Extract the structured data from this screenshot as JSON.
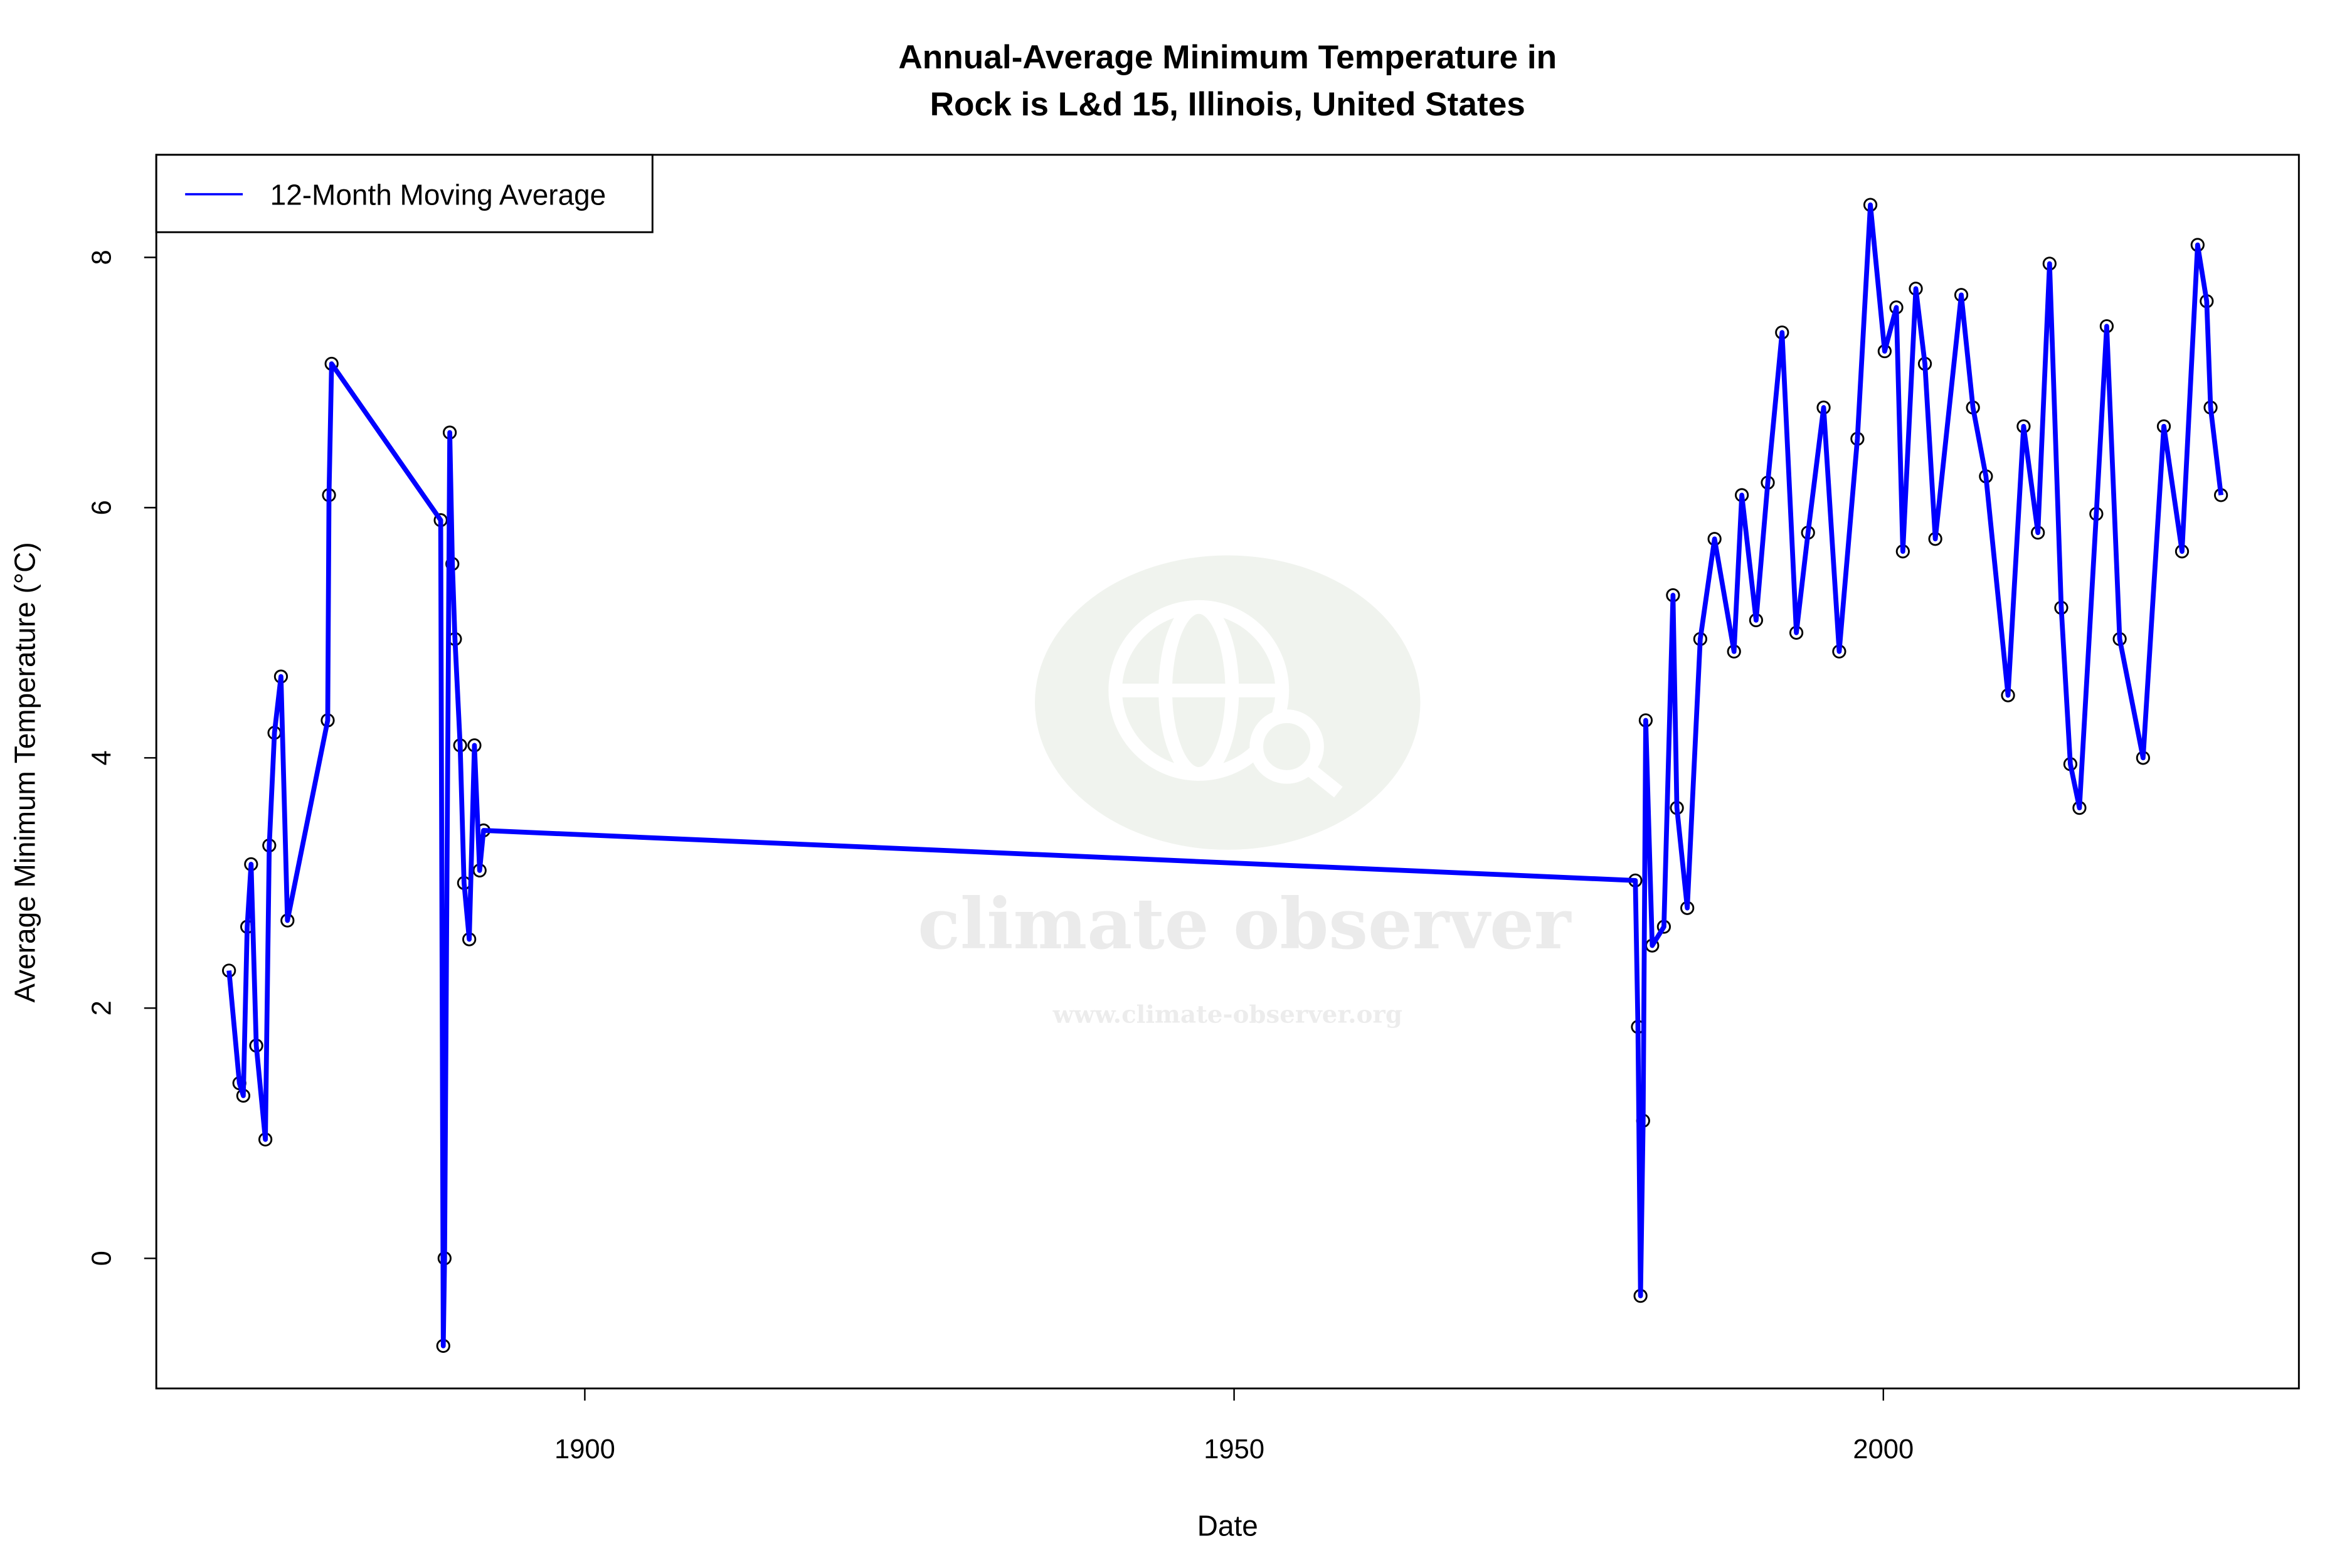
{
  "chart_data": {
    "type": "line",
    "title": [
      "Annual-Average Minimum Temperature in",
      "Rock is L&d 15, Illinois, United States"
    ],
    "xlabel": "Date",
    "ylabel": "Average Minimum Temperature (°C)",
    "xlim": [
      1867,
      2032
    ],
    "ylim": [
      -1.04,
      8.82
    ],
    "xticks": [
      1900,
      1950,
      2000
    ],
    "yticks": [
      0,
      2,
      4,
      6,
      8
    ],
    "grid": false,
    "legend": {
      "placement": "top-left",
      "entries": [
        {
          "label": "12-Month Moving Average",
          "color": "#0000ff"
        }
      ]
    },
    "series": [
      {
        "name": "12-Month Moving Average",
        "color": "#0000ff",
        "marker": "open-circle",
        "x": [
          1872.6,
          1873.4,
          1873.7,
          1874.0,
          1874.3,
          1874.7,
          1875.4,
          1875.7,
          1876.1,
          1876.6,
          1877.1,
          1880.2,
          1880.3,
          1880.5,
          1888.9,
          1889.1,
          1889.2,
          1889.6,
          1889.8,
          1890.0,
          1890.4,
          1890.7,
          1891.1,
          1891.5,
          1891.9,
          1892.2,
          1980.9,
          1981.1,
          1981.3,
          1981.5,
          1981.7,
          1982.2,
          1983.1,
          1983.8,
          1984.1,
          1984.9,
          1985.9,
          1987.0,
          1988.5,
          1989.1,
          1990.2,
          1991.1,
          1992.2,
          1993.3,
          1994.2,
          1995.4,
          1996.6,
          1998.0,
          1999.0,
          2000.1,
          2001.0,
          2001.5,
          2002.5,
          2003.2,
          2004.0,
          2006.0,
          2006.9,
          2007.9,
          2009.6,
          2010.8,
          2011.9,
          2012.8,
          2013.7,
          2014.4,
          2015.1,
          2016.4,
          2017.2,
          2018.2,
          2020.0,
          2021.6,
          2023.0,
          2024.2,
          2024.9,
          2025.2,
          2026.0
        ],
        "y": [
          2.3,
          1.4,
          1.3,
          2.65,
          3.15,
          1.7,
          0.95,
          3.3,
          4.2,
          4.65,
          2.7,
          4.3,
          6.1,
          7.15,
          5.9,
          -0.7,
          0.0,
          6.6,
          5.55,
          4.95,
          4.1,
          3.0,
          2.55,
          4.1,
          3.1,
          3.42,
          3.02,
          1.85,
          -0.3,
          1.1,
          4.3,
          2.5,
          2.65,
          5.3,
          3.6,
          2.8,
          4.95,
          5.75,
          4.85,
          6.1,
          5.1,
          6.2,
          7.4,
          5.0,
          5.8,
          6.8,
          4.85,
          6.55,
          8.42,
          7.25,
          7.6,
          5.65,
          7.75,
          7.15,
          5.75,
          7.7,
          6.8,
          6.25,
          4.5,
          6.65,
          5.8,
          7.95,
          5.2,
          3.95,
          3.6,
          5.95,
          7.45,
          4.95,
          4.0,
          6.65,
          5.65,
          8.1,
          7.65,
          6.8,
          6.1
        ]
      }
    ]
  },
  "watermark": {
    "logo_text": "climate observer",
    "url_text": "www.climate-observer.org"
  }
}
